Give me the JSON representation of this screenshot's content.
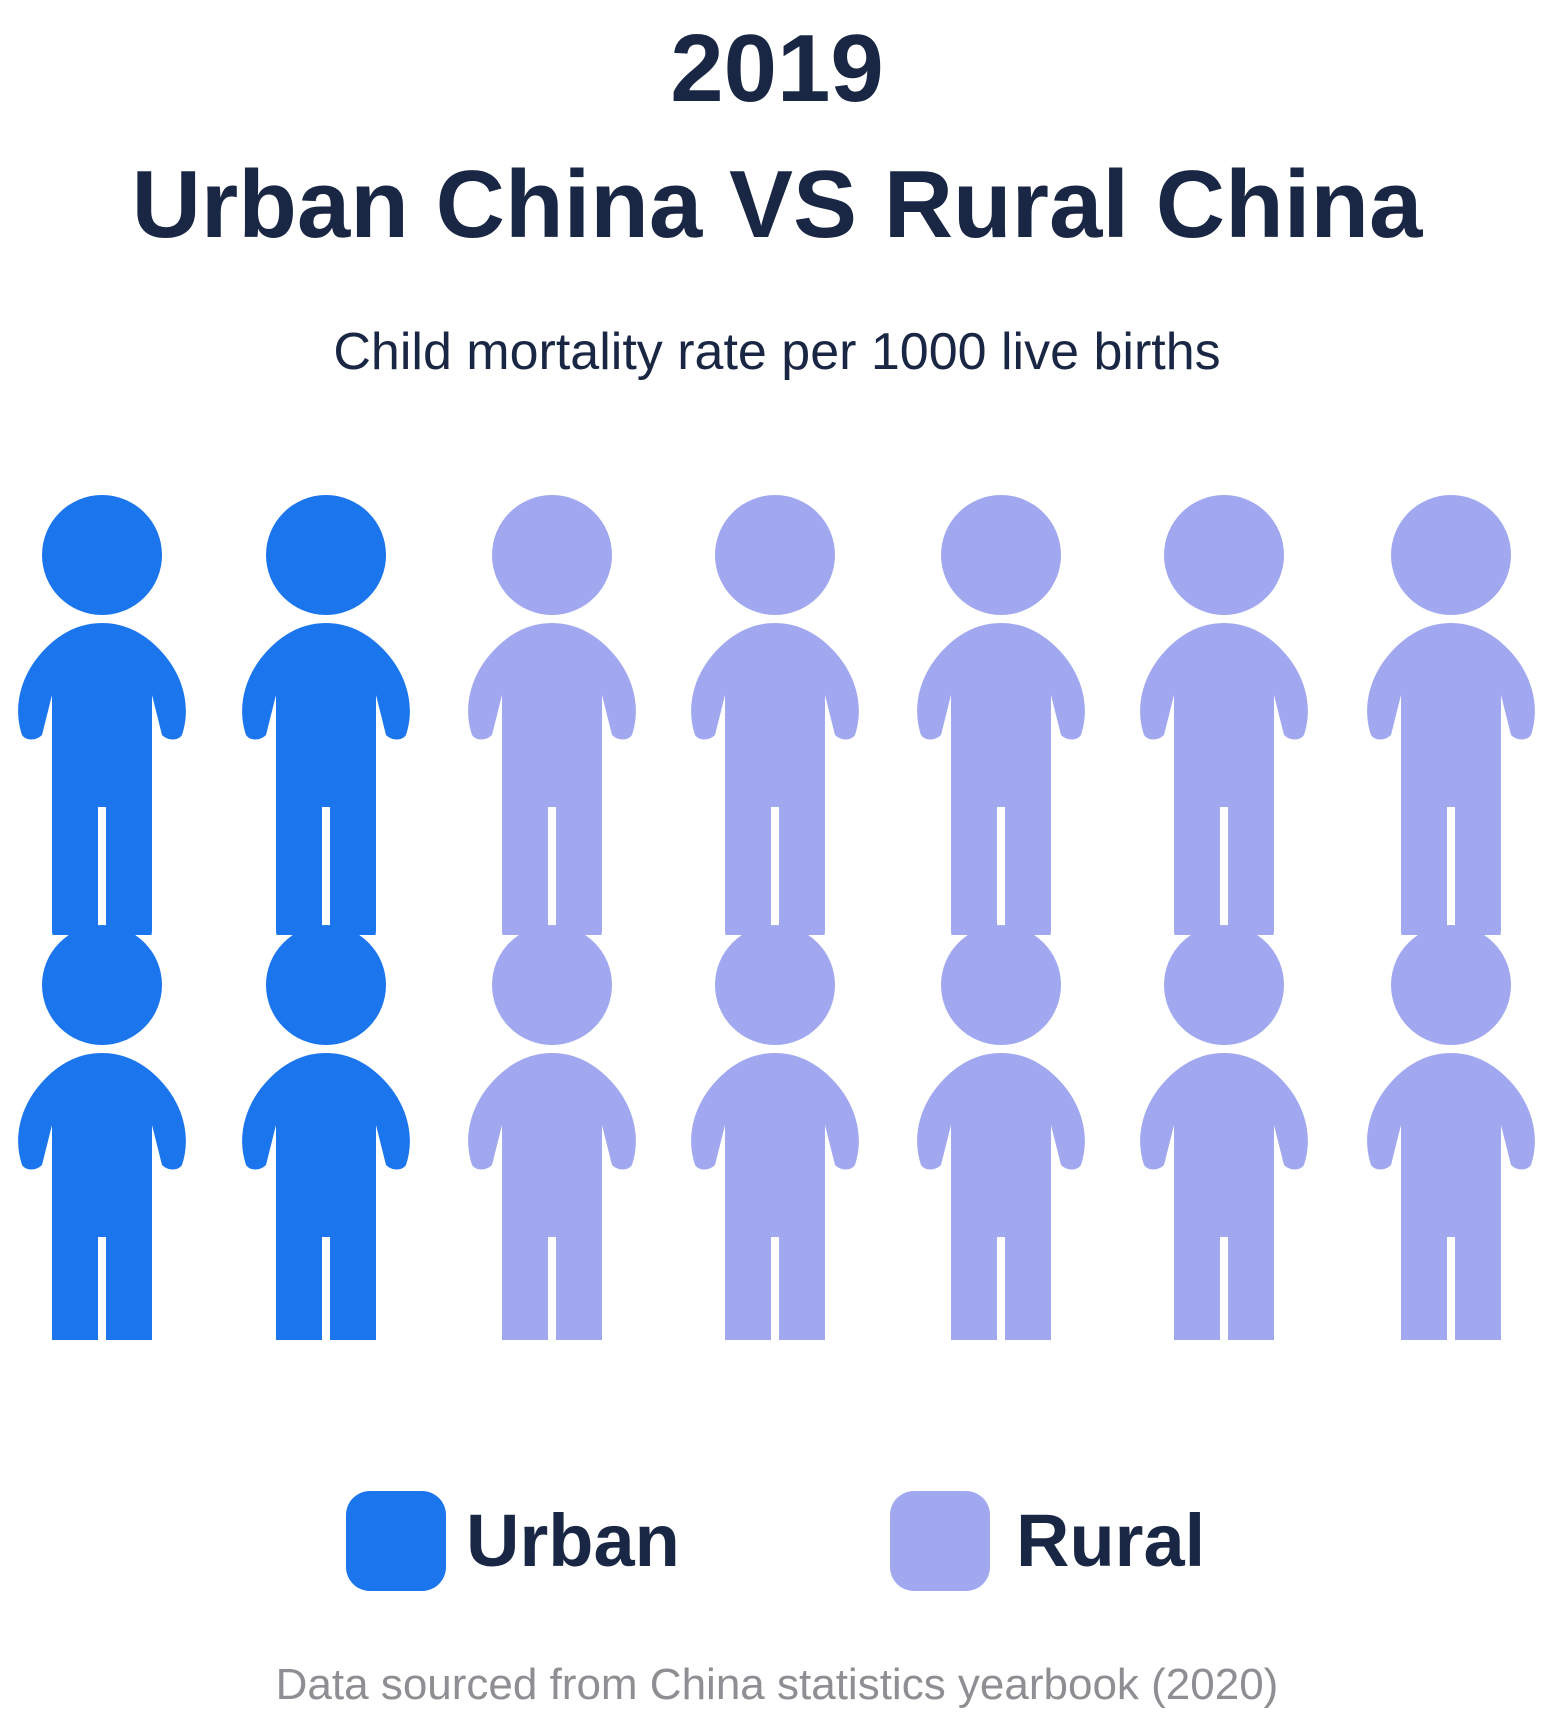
{
  "title_year": "2019",
  "title_main": "Urban China VS Rural China",
  "subtitle": "Child mortality rate per 1000 live births",
  "source": "Data sourced from China statistics yearbook (2020)",
  "colors": {
    "urban": "#1b76ee",
    "rural": "#a1a8ef",
    "text": "#1a2744",
    "muted": "#8e8e93"
  },
  "icon": "child-figure-icon",
  "chart_data": {
    "type": "pictogram",
    "title": "2019 Urban China VS Rural China",
    "subtitle": "Child mortality rate per 1000 live births",
    "series": [
      {
        "name": "Urban",
        "value": 4,
        "color": "#1b76ee"
      },
      {
        "name": "Rural",
        "value": 10,
        "color": "#a1a8ef"
      }
    ],
    "grid": {
      "rows": 2,
      "columns": 7,
      "fill_order": "urban-columns-first"
    },
    "legend": {
      "position": "bottom",
      "entries": [
        "Urban",
        "Rural"
      ]
    }
  }
}
